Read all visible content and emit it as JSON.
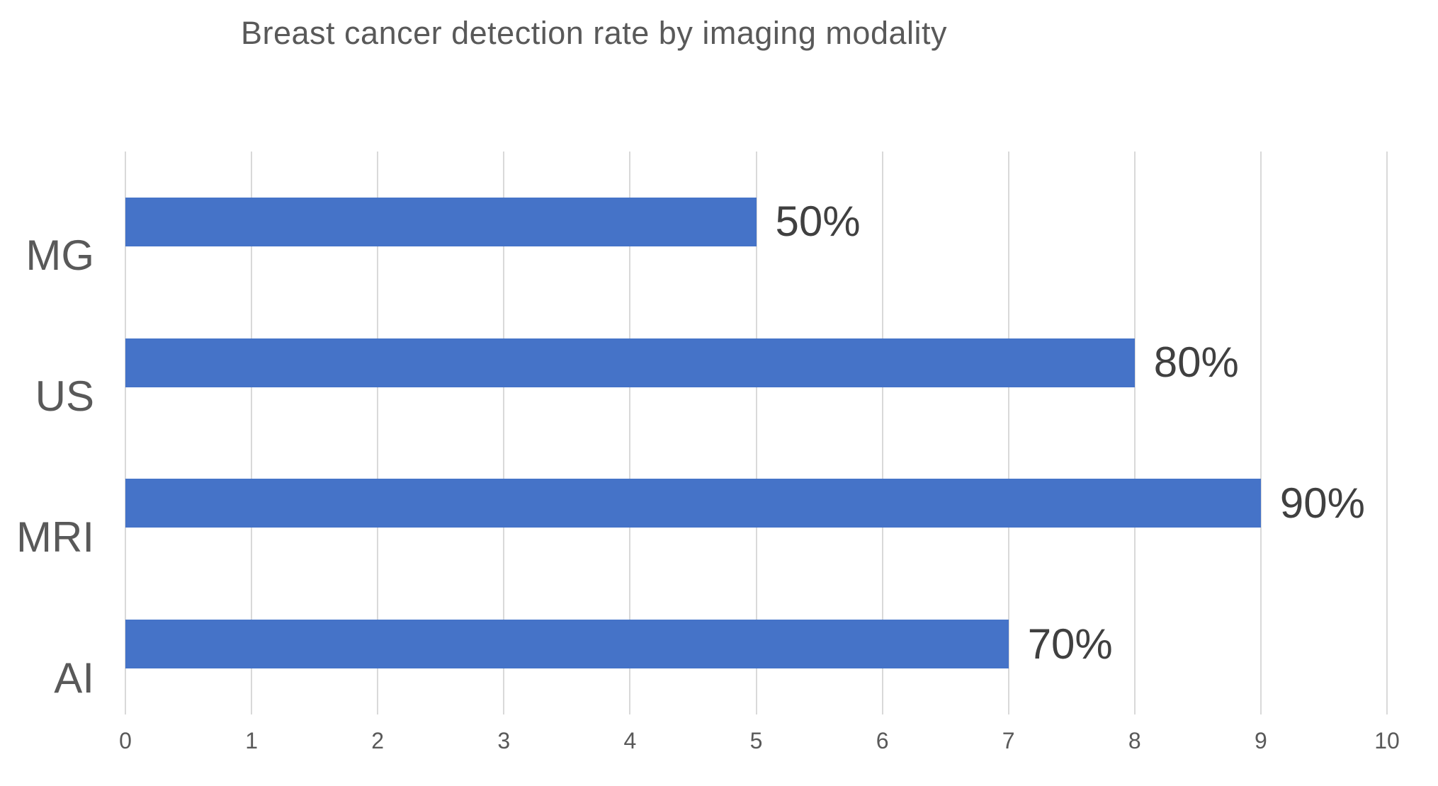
{
  "chart_data": {
    "type": "bar",
    "orientation": "horizontal",
    "title": "Breast cancer detection rate by imaging modality",
    "categories": [
      "MG",
      "US",
      "MRI",
      "AI"
    ],
    "values": [
      5,
      8,
      9,
      7
    ],
    "data_labels": [
      "50%",
      "80%",
      "90%",
      "70%"
    ],
    "x_ticks": [
      "0",
      "1",
      "2",
      "3",
      "4",
      "5",
      "6",
      "7",
      "8",
      "9",
      "10"
    ],
    "xlim": [
      0,
      10
    ],
    "xlabel": "",
    "ylabel": "",
    "grid": "vertical-gridlines",
    "legend": "none",
    "colors": {
      "bar": "#4573C8",
      "gridline": "#D9D9D9",
      "title": "#595959",
      "axis_labels": "#595959",
      "data_labels": "#404040",
      "background": "#FFFFFF"
    }
  }
}
